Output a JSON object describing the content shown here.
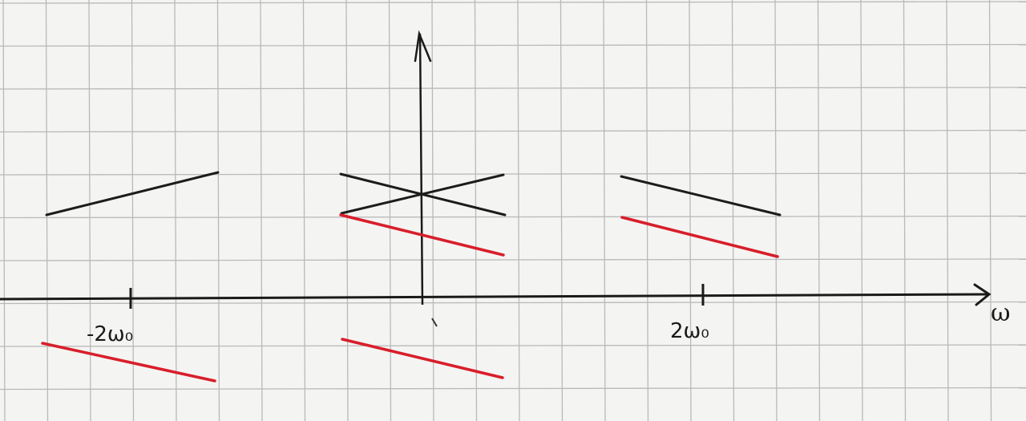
{
  "axis_labels": {
    "horizontal": "ω",
    "tick_left": "-2ω₀",
    "tick_right": "2ω₀"
  },
  "colors": {
    "paper": "#f4f4f2",
    "grid": "#b9b9b9",
    "axis": "#1a1a1a",
    "black_ink": "#1c1c1c",
    "red_ink": "#d81e2a"
  },
  "sketch_elements": [
    "grid-paper",
    "frequency-axis",
    "vertical-axis",
    "black-spectrum-segments",
    "red-spectrum-segments"
  ]
}
